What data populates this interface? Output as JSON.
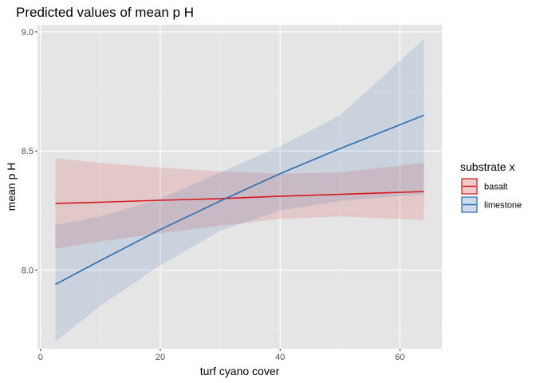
{
  "chart_data": {
    "type": "line",
    "title": "Predicted values of mean p H",
    "xlabel": "turf cyano cover",
    "ylabel": "mean p H",
    "xlim": [
      -0.5,
      67
    ],
    "ylim": [
      7.67,
      9.03
    ],
    "x_ticks": [
      0,
      20,
      40,
      60
    ],
    "x_tick_labels": [
      "0",
      "20",
      "40",
      "60"
    ],
    "y_ticks": [
      8.0,
      8.5,
      9.0
    ],
    "y_tick_labels": [
      "8.0",
      "8.5",
      "9.0"
    ],
    "grid": true,
    "legend": {
      "title": "substrate x",
      "position": "right"
    },
    "series": [
      {
        "name": "basalt",
        "color": "#d7191c",
        "x": [
          2.5,
          10,
          20,
          30,
          40,
          50,
          64
        ],
        "values": [
          8.28,
          8.285,
          8.293,
          8.3,
          8.31,
          8.318,
          8.33
        ],
        "ci_upper": [
          8.47,
          8.45,
          8.43,
          8.415,
          8.405,
          8.41,
          8.45
        ],
        "ci_lower": [
          8.09,
          8.12,
          8.155,
          8.185,
          8.215,
          8.225,
          8.21
        ]
      },
      {
        "name": "limestone",
        "color": "#2c6db2",
        "x": [
          2.5,
          10,
          20,
          30,
          40,
          50,
          64
        ],
        "values": [
          7.94,
          8.04,
          8.17,
          8.29,
          8.405,
          8.51,
          8.65
        ],
        "ci_upper": [
          8.19,
          8.225,
          8.3,
          8.41,
          8.52,
          8.65,
          8.97
        ],
        "ci_lower": [
          7.7,
          7.85,
          8.02,
          8.165,
          8.25,
          8.29,
          8.32
        ]
      }
    ]
  }
}
